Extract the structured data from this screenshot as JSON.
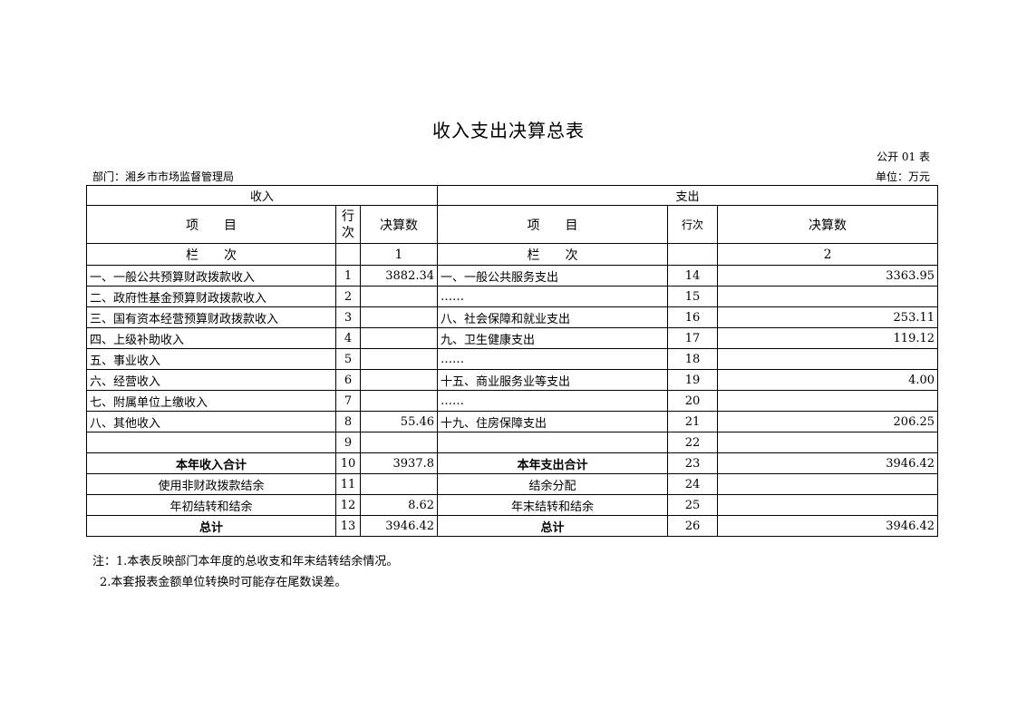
{
  "title": "收入支出决算总表",
  "table_code": "公开 01 表",
  "department": "部门：湘乡市市场监督管理局",
  "unit": "单位：万元",
  "headers": {
    "income": "收入",
    "expense": "支出",
    "item": "项　　目",
    "row_no_income": "行\n次",
    "row_no_expense": "行次",
    "amount": "决算数",
    "column_label": "栏　　次",
    "income_col": "1",
    "expense_col": "2"
  },
  "rows": [
    {
      "in_item": "一、一般公共预算财政拨款收入",
      "in_no": "1",
      "in_amt": "3882.34",
      "ex_item": "一、一般公共服务支出",
      "ex_no": "14",
      "ex_amt": "3363.95"
    },
    {
      "in_item": "二、政府性基金预算财政拨款收入",
      "in_no": "2",
      "in_amt": "",
      "ex_item": "……",
      "ex_no": "15",
      "ex_amt": ""
    },
    {
      "in_item": "三、国有资本经营预算财政拨款收入",
      "in_no": "3",
      "in_amt": "",
      "ex_item": "八、社会保障和就业支出",
      "ex_no": "16",
      "ex_amt": "253.11"
    },
    {
      "in_item": "四、上级补助收入",
      "in_no": "4",
      "in_amt": "",
      "ex_item": "九、卫生健康支出",
      "ex_no": "17",
      "ex_amt": "119.12"
    },
    {
      "in_item": "五、事业收入",
      "in_no": "5",
      "in_amt": "",
      "ex_item": "……",
      "ex_no": "18",
      "ex_amt": ""
    },
    {
      "in_item": "六、经营收入",
      "in_no": "6",
      "in_amt": "",
      "ex_item": "十五、商业服务业等支出",
      "ex_no": "19",
      "ex_amt": "4.00"
    },
    {
      "in_item": "七、附属单位上缴收入",
      "in_no": "7",
      "in_amt": "",
      "ex_item": "……",
      "ex_no": "20",
      "ex_amt": ""
    },
    {
      "in_item": "八、其他收入",
      "in_no": "8",
      "in_amt": "55.46",
      "ex_item": "十九、住房保障支出",
      "ex_no": "21",
      "ex_amt": "206.25"
    },
    {
      "in_item": "",
      "in_no": "9",
      "in_amt": "",
      "ex_item": "",
      "ex_no": "22",
      "ex_amt": ""
    },
    {
      "in_item": "本年收入合计",
      "in_no": "10",
      "in_amt": "3937.8",
      "ex_item": "本年支出合计",
      "ex_no": "23",
      "ex_amt": "3946.42",
      "style": "bold"
    },
    {
      "in_item": "使用非财政拨款结余",
      "in_no": "11",
      "in_amt": "",
      "ex_item": "结余分配",
      "ex_no": "24",
      "ex_amt": "",
      "style": "center"
    },
    {
      "in_item": "年初结转和结余",
      "in_no": "12",
      "in_amt": "8.62",
      "ex_item": "年末结转和结余",
      "ex_no": "25",
      "ex_amt": "",
      "style": "center"
    },
    {
      "in_item": "总计",
      "in_no": "13",
      "in_amt": "3946.42",
      "ex_item": "总计",
      "ex_no": "26",
      "ex_amt": "3946.42",
      "style": "bold"
    }
  ],
  "notes": [
    "注：1.本表反映部门本年度的总收支和年末结转结余情况。",
    "2.本套报表金额单位转换时可能存在尾数误差。"
  ]
}
